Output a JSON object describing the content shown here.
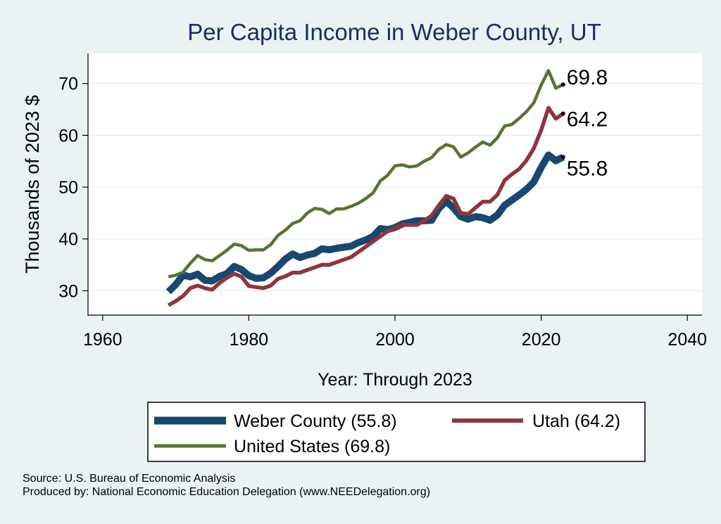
{
  "chart_data": {
    "type": "line",
    "title": "Per Capita Income in Weber County, UT",
    "xlabel": "Year: Through 2023",
    "ylabel": "Thousands of 2023 $",
    "xlim": [
      1958,
      2042
    ],
    "ylim": [
      25.3,
      75.8
    ],
    "xticks": [
      1960,
      1980,
      2000,
      2020,
      2040
    ],
    "yticks": [
      30,
      40,
      50,
      60,
      70
    ],
    "grid": "horizontal",
    "legend_position": "bottom",
    "colors": {
      "weber": "#1a476f",
      "utah": "#90353b",
      "us": "#55752f",
      "title": "#1a2e5a",
      "plot_bg": "#ffffff",
      "page_bg": "#eaf2f3"
    },
    "x": [
      1969,
      1970,
      1971,
      1972,
      1973,
      1974,
      1975,
      1976,
      1977,
      1978,
      1979,
      1980,
      1981,
      1982,
      1983,
      1984,
      1985,
      1986,
      1987,
      1988,
      1989,
      1990,
      1991,
      1992,
      1993,
      1994,
      1995,
      1996,
      1997,
      1998,
      1999,
      2000,
      2001,
      2002,
      2003,
      2004,
      2005,
      2006,
      2007,
      2008,
      2009,
      2010,
      2011,
      2012,
      2013,
      2014,
      2015,
      2016,
      2017,
      2018,
      2019,
      2020,
      2021,
      2022,
      2023
    ],
    "series": [
      {
        "name": "Weber County (55.8)",
        "key": "weber",
        "values": [
          29.8,
          31.2,
          33.0,
          32.7,
          33.2,
          32.0,
          31.9,
          32.8,
          33.3,
          34.7,
          34.1,
          32.9,
          32.4,
          32.5,
          33.4,
          34.7,
          36.1,
          37.1,
          36.4,
          36.9,
          37.2,
          38.1,
          37.9,
          38.2,
          38.4,
          38.6,
          39.3,
          39.8,
          40.5,
          42.0,
          41.8,
          42.2,
          42.9,
          43.2,
          43.5,
          43.5,
          43.6,
          45.9,
          47.3,
          46.0,
          44.3,
          43.8,
          44.3,
          44.1,
          43.6,
          44.6,
          46.5,
          47.5,
          48.5,
          49.6,
          51.0,
          53.8,
          56.2,
          55.1,
          55.8
        ]
      },
      {
        "name": "Utah (64.2)",
        "key": "utah",
        "values": [
          27.2,
          28.0,
          29.0,
          30.5,
          31.0,
          30.5,
          30.2,
          31.5,
          32.5,
          33.3,
          32.7,
          30.9,
          30.7,
          30.5,
          31.0,
          32.3,
          32.8,
          33.5,
          33.5,
          34.0,
          34.5,
          35.0,
          35.0,
          35.5,
          36.0,
          36.5,
          37.5,
          38.5,
          39.5,
          40.5,
          41.5,
          42.0,
          42.7,
          42.7,
          42.7,
          43.5,
          44.5,
          46.5,
          48.3,
          47.8,
          45.0,
          44.8,
          46.0,
          47.2,
          47.2,
          48.5,
          51.3,
          52.5,
          53.5,
          55.2,
          57.5,
          61.0,
          65.3,
          63.2,
          64.2
        ]
      },
      {
        "name": "United States (69.8)",
        "key": "us",
        "values": [
          32.7,
          33.0,
          33.6,
          35.3,
          36.8,
          36.0,
          35.8,
          36.8,
          37.8,
          39.0,
          38.7,
          37.8,
          37.9,
          37.9,
          38.9,
          40.7,
          41.7,
          43.0,
          43.5,
          45.0,
          45.9,
          45.7,
          44.9,
          45.8,
          45.8,
          46.3,
          46.9,
          47.8,
          48.9,
          51.2,
          52.3,
          54.1,
          54.3,
          53.9,
          54.1,
          55.0,
          55.7,
          57.3,
          58.2,
          57.8,
          55.8,
          56.6,
          57.7,
          58.7,
          58.1,
          59.5,
          61.8,
          62.1,
          63.3,
          64.6,
          66.3,
          69.7,
          72.5,
          69.1,
          69.8
        ]
      }
    ],
    "end_labels": [
      {
        "key": "us",
        "text": "69.8"
      },
      {
        "key": "utah",
        "text": "64.2"
      },
      {
        "key": "weber",
        "text": "55.8"
      }
    ]
  },
  "source_line": "Source: U.S. Bureau of Economic Analysis",
  "producer_line": "Produced by: National Economic Education Delegation (www.NEEDelegation.org)"
}
